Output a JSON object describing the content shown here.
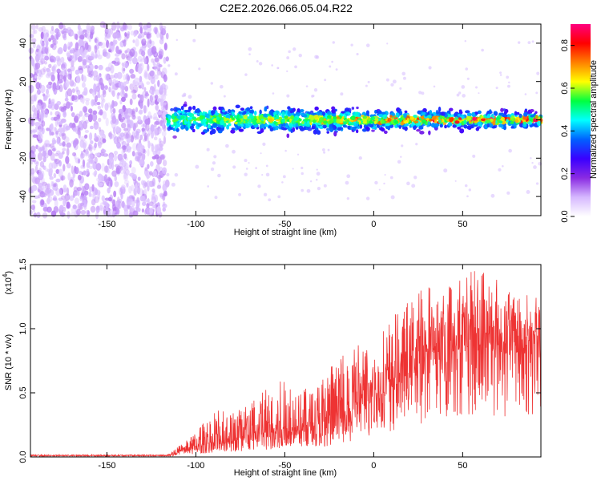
{
  "figure": {
    "title": "C2E2.2026.066.05.04.R22"
  },
  "chart_data": [
    {
      "type": "heatmap",
      "panel": "top",
      "xlabel": "Height of straight line (km)",
      "ylabel": "Frequency (Hz)",
      "xlim": [
        -193,
        94
      ],
      "ylim": [
        -50,
        50
      ],
      "x_ticks": [
        -150,
        -100,
        -50,
        0,
        50
      ],
      "x_tick_labels": [
        "-150",
        "-100",
        "-50",
        "0",
        "50"
      ],
      "y_ticks": [
        -40,
        -20,
        0,
        20,
        40
      ],
      "y_tick_labels": [
        "-40",
        "-20",
        "0",
        "20",
        "40"
      ],
      "grid": false,
      "noise_region": {
        "x_start": -193,
        "x_end": -116,
        "amplitude_range": [
          0.05,
          0.25
        ]
      },
      "signal_band": {
        "x_start": -116,
        "x_end": 94,
        "center_freq": 0,
        "half_width_hz": [
          10,
          6
        ],
        "core_amplitude": [
          0.3,
          0.85
        ]
      },
      "colorbar": {
        "label": "Normalized spectral amplitude",
        "range": [
          0.0,
          0.9
        ],
        "ticks": [
          0.0,
          0.2,
          0.4,
          0.6,
          0.8
        ],
        "tick_labels": [
          "0.0",
          "0.2",
          "0.4",
          "0.6",
          "0.8"
        ],
        "colormap": [
          "#ffffff",
          "#d6b8ff",
          "#8a2be2",
          "#3a00ff",
          "#0060ff",
          "#00ffff",
          "#00ff40",
          "#ffff00",
          "#ff8000",
          "#ff0000",
          "#ff0080"
        ]
      }
    },
    {
      "type": "line",
      "panel": "bottom",
      "xlabel": "Height of straight line (km)",
      "ylabel": "SNR (10 * v/v)",
      "y_scale_label": "(x10",
      "y_scale_exponent": "4",
      "y_scale_close": ")",
      "xlim": [
        -193,
        94
      ],
      "ylim": [
        0.0,
        1.5
      ],
      "x_ticks": [
        -150,
        -100,
        -50,
        0,
        50
      ],
      "x_tick_labels": [
        "-150",
        "-100",
        "-50",
        "0",
        "50"
      ],
      "y_ticks": [
        0.0,
        0.5,
        1.0,
        1.5
      ],
      "y_tick_labels": [
        "0.0",
        "0.5",
        "1.0",
        "1.5"
      ],
      "line_color": "#ee3333",
      "series": [
        {
          "name": "SNR",
          "envelope_x": [
            -193,
            -150,
            -116,
            -110,
            -100,
            -90,
            -80,
            -70,
            -60,
            -50,
            -40,
            -30,
            -20,
            -10,
            0,
            10,
            20,
            30,
            40,
            50,
            60,
            70,
            80,
            94
          ],
          "envelope_mean": [
            0.01,
            0.01,
            0.01,
            0.03,
            0.06,
            0.08,
            0.1,
            0.12,
            0.14,
            0.16,
            0.18,
            0.2,
            0.24,
            0.3,
            0.42,
            0.5,
            0.58,
            0.68,
            0.75,
            0.8,
            0.82,
            0.8,
            0.78,
            0.76
          ],
          "envelope_peak": [
            0.02,
            0.02,
            0.02,
            0.08,
            0.2,
            0.35,
            0.4,
            0.48,
            0.55,
            0.62,
            0.58,
            0.6,
            0.78,
            0.9,
            0.82,
            1.12,
            1.22,
            1.35,
            1.4,
            1.45,
            1.5,
            1.38,
            1.3,
            1.25
          ]
        }
      ]
    }
  ]
}
